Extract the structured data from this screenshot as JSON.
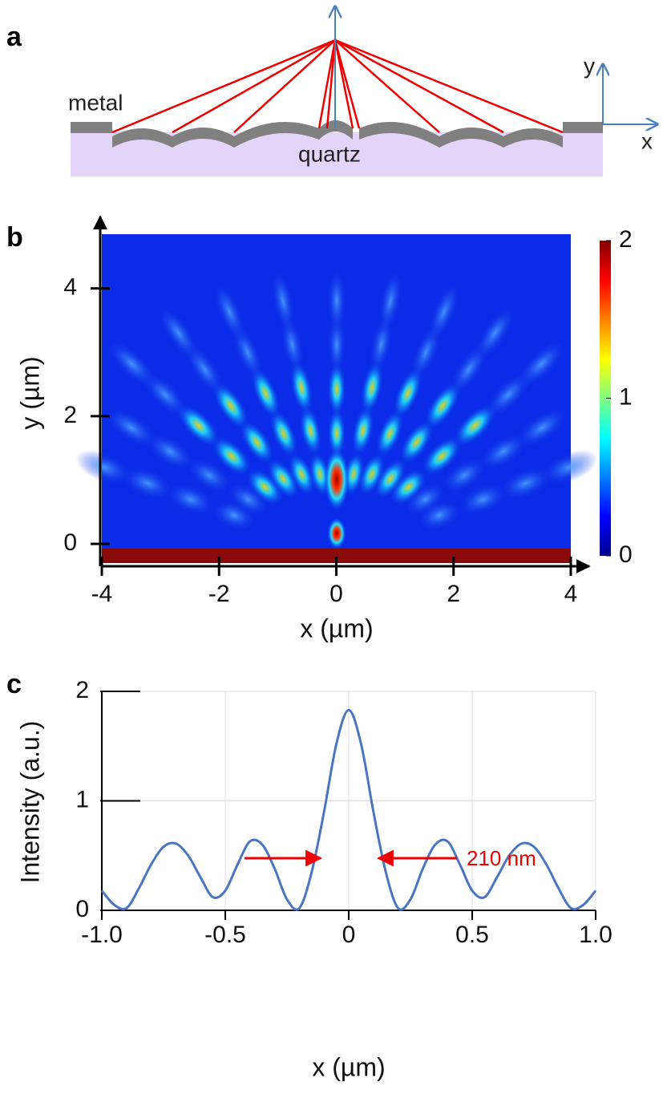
{
  "panel_labels": [
    "a",
    "b",
    "c"
  ],
  "diagram": {
    "labels": [
      "metal",
      "quartz",
      "y",
      "x"
    ]
  },
  "chart_data": [
    {
      "type": "heatmap",
      "xlabel": "x (µm)",
      "ylabel": "y (µm)",
      "xlim": [
        -4,
        4
      ],
      "ylim": [
        -0.3,
        4.85
      ],
      "xticks": [
        -4,
        -2,
        0,
        2,
        4
      ],
      "yticks": [
        0,
        2,
        4
      ],
      "colorbar": {
        "lim": [
          0,
          2
        ],
        "ticks": [
          0,
          1,
          2
        ]
      }
    },
    {
      "type": "line",
      "xlabel": "x (µm)",
      "ylabel": "Intensity (a.u.)",
      "xlim": [
        -1,
        1
      ],
      "ylim": [
        0,
        2
      ],
      "xticks": [
        {
          "value": -1,
          "label": "-1.0"
        },
        {
          "value": -0.5,
          "label": "-0.5"
        },
        0,
        0.5,
        {
          "value": 1,
          "label": "1.0"
        }
      ],
      "yticks": [
        0,
        1,
        2
      ],
      "grid": true,
      "annotation": "210 nm",
      "x": [
        -1,
        -0.95,
        -0.9,
        -0.85,
        -0.8,
        -0.75,
        -0.7,
        -0.65,
        -0.6,
        -0.55,
        -0.5,
        -0.45,
        -0.4,
        -0.35,
        -0.3,
        -0.25,
        -0.2,
        -0.15,
        -0.1,
        -0.05,
        0,
        0.05,
        0.1,
        0.15,
        0.2,
        0.25,
        0.3,
        0.35,
        0.4,
        0.45,
        0.5,
        0.55,
        0.6,
        0.65,
        0.7,
        0.75,
        0.8,
        0.85,
        0.9,
        0.95,
        1
      ],
      "series": [
        {
          "color": "#4a76c0",
          "values": [
            0.18,
            0.05,
            0.02,
            0.2,
            0.42,
            0.58,
            0.61,
            0.5,
            0.3,
            0.12,
            0.18,
            0.42,
            0.63,
            0.6,
            0.38,
            0.1,
            0.02,
            0.35,
            0.9,
            1.52,
            1.83,
            1.52,
            0.9,
            0.35,
            0.02,
            0.1,
            0.38,
            0.6,
            0.63,
            0.42,
            0.18,
            0.12,
            0.3,
            0.5,
            0.61,
            0.58,
            0.42,
            0.2,
            0.02,
            0.05,
            0.18
          ]
        }
      ]
    }
  ]
}
